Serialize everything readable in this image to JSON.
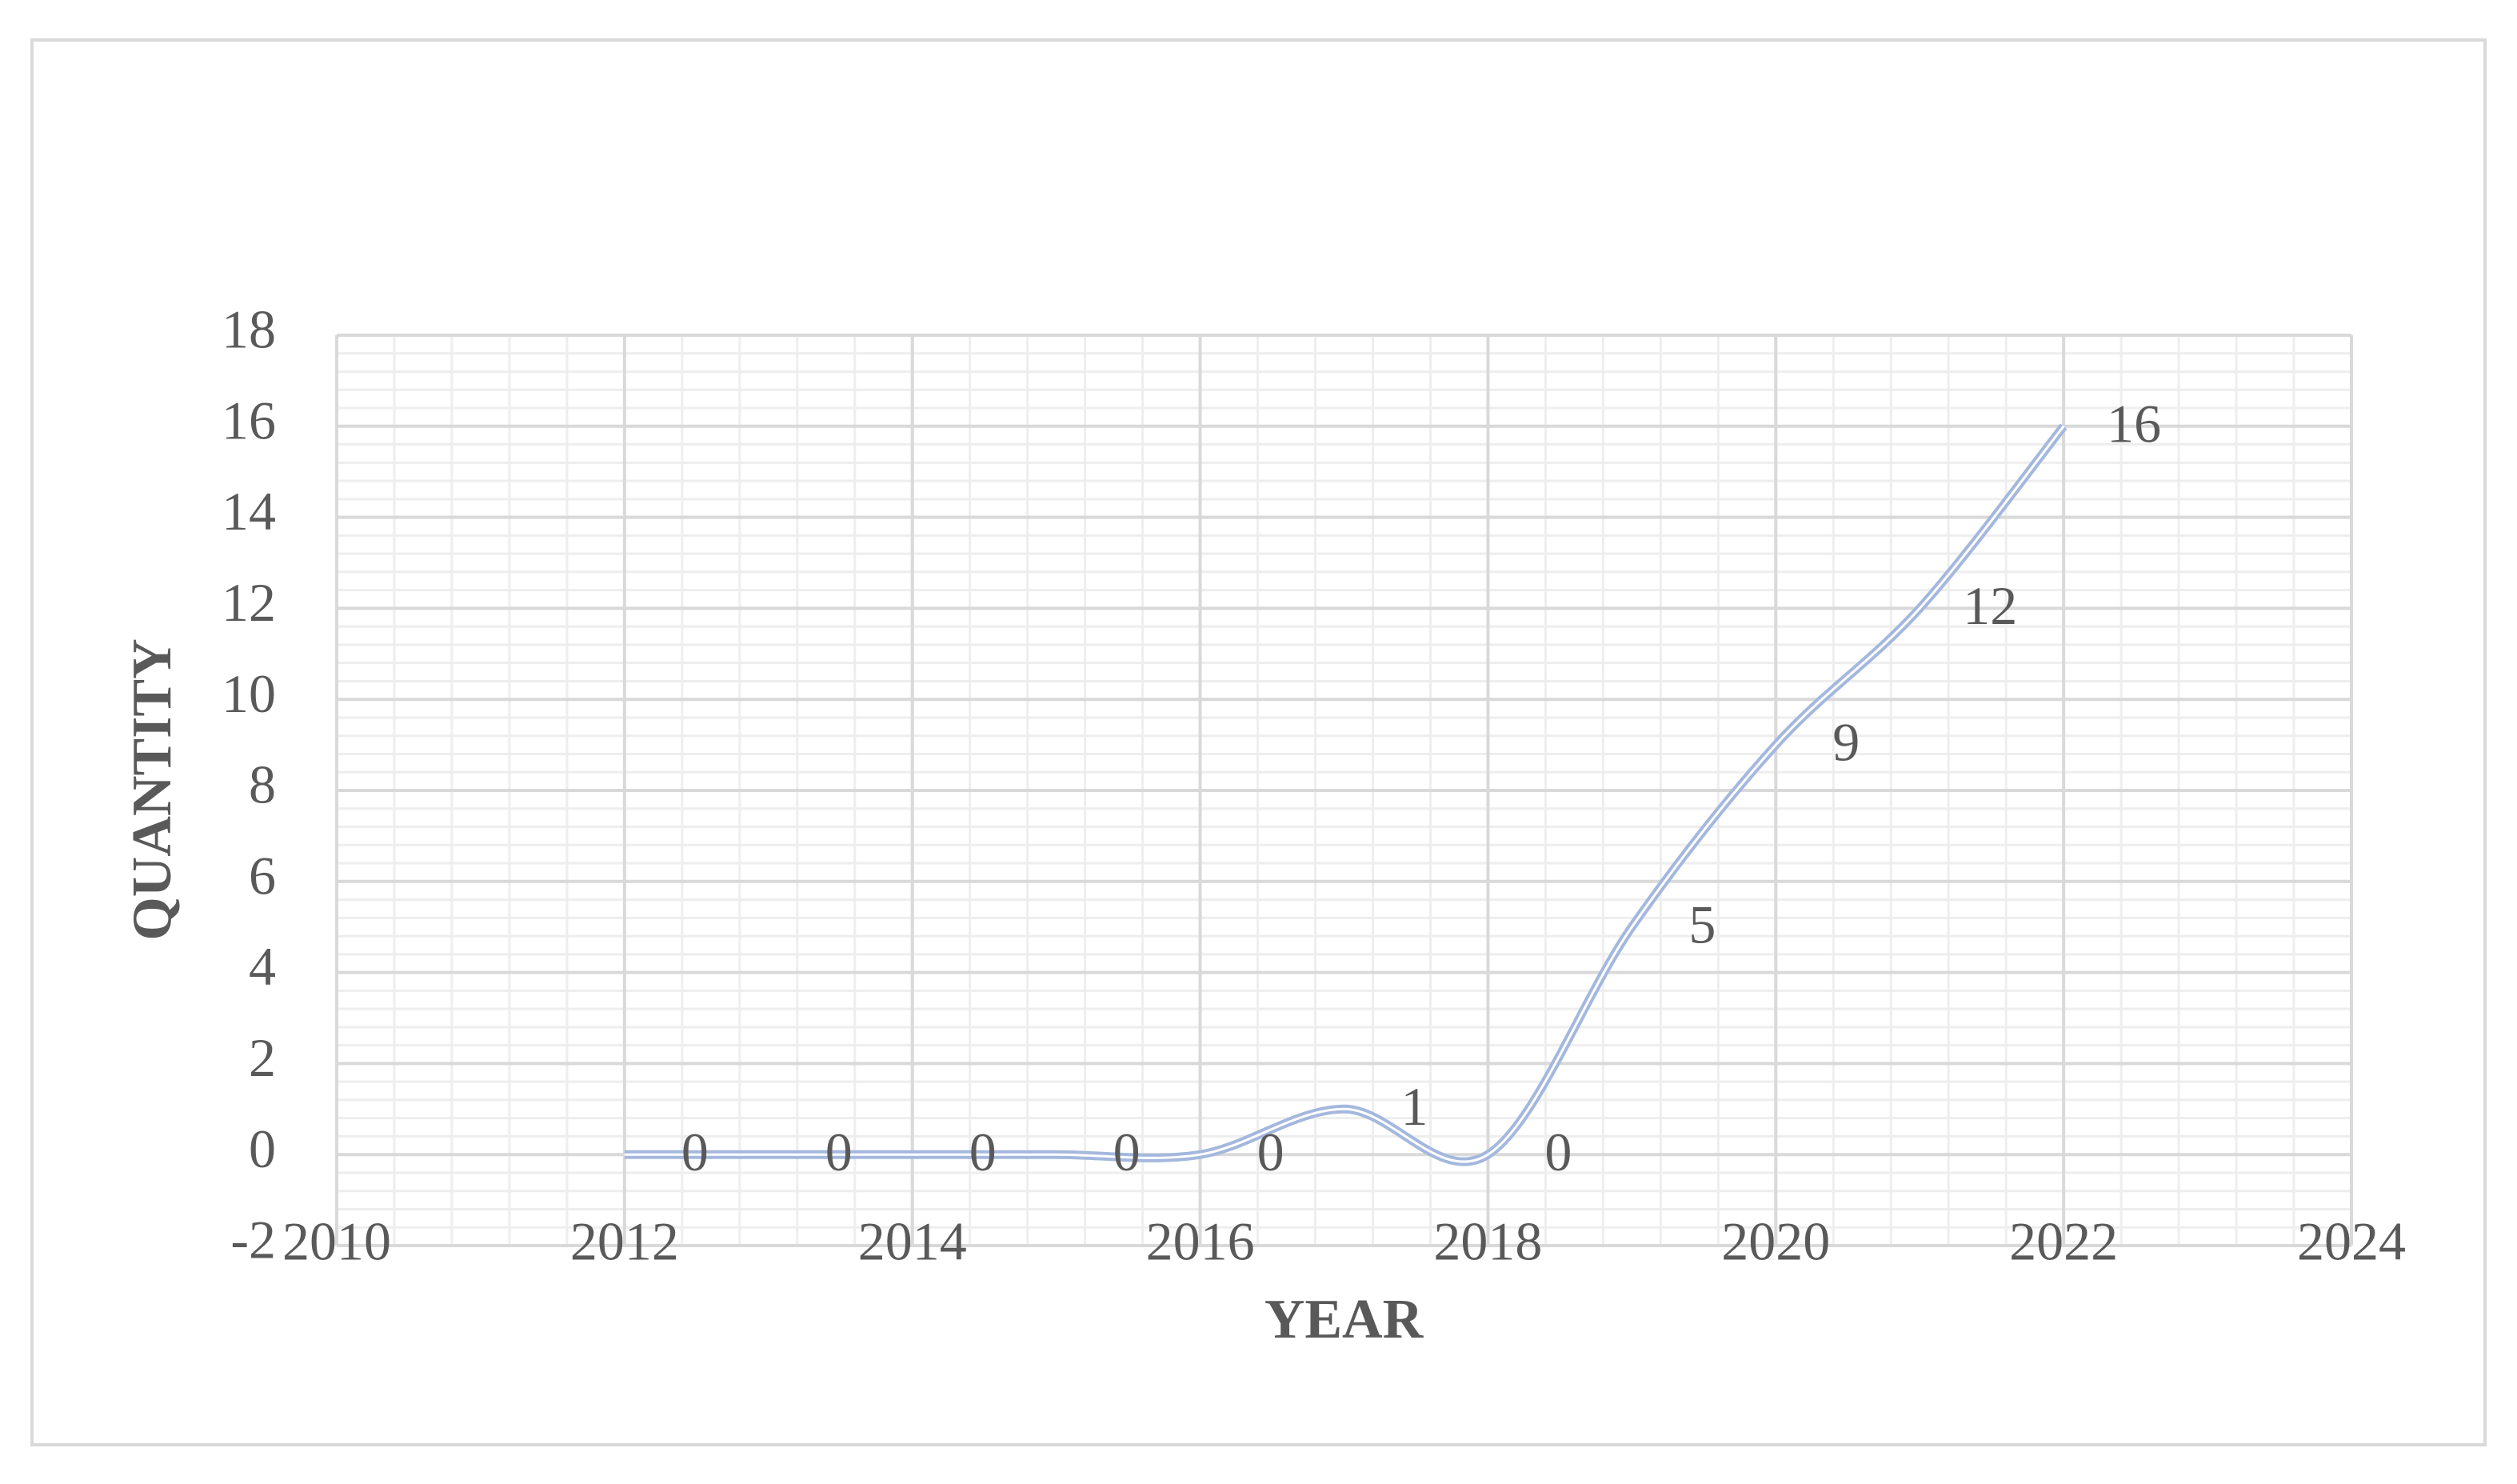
{
  "chart_data": {
    "type": "line",
    "x": [
      2012,
      2013,
      2014,
      2015,
      2016,
      2017,
      2018,
      2019,
      2020,
      2021,
      2022
    ],
    "values": [
      0,
      0,
      0,
      0,
      0,
      1,
      0,
      5,
      9,
      12,
      16
    ],
    "color": "#a4b8de",
    "xlabel": "YEAR",
    "ylabel": "QUANTITY",
    "xlim": [
      2010,
      2024
    ],
    "xticks": [
      2010,
      2012,
      2014,
      2016,
      2018,
      2020,
      2022,
      2024
    ],
    "ylim": [
      -2,
      18
    ],
    "yticks": [
      -2,
      0,
      2,
      4,
      6,
      8,
      10,
      12,
      14,
      16,
      18
    ],
    "grid": true,
    "smooth": true,
    "data_labels": true
  }
}
